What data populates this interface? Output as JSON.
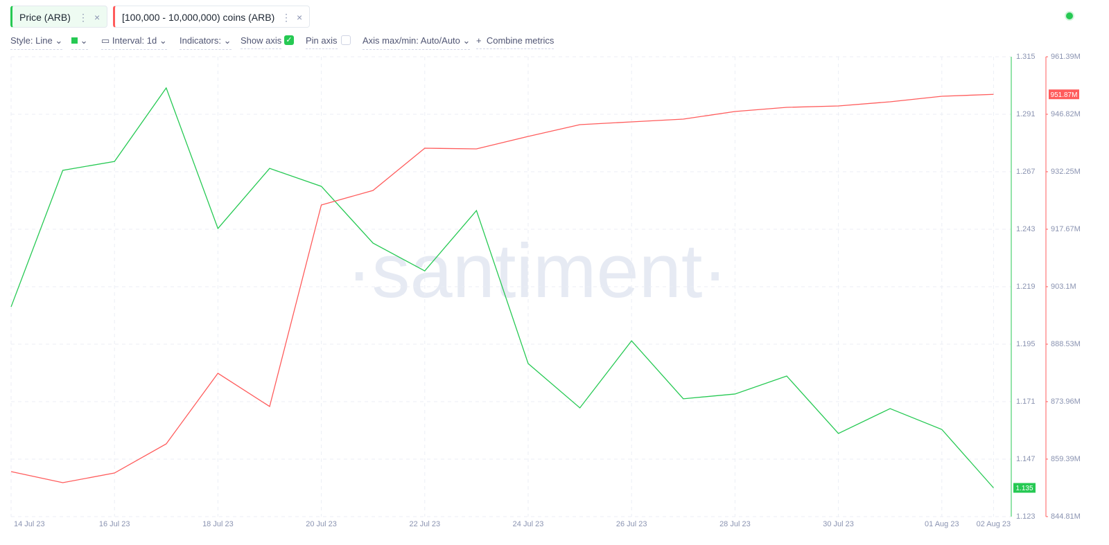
{
  "toolbar": {
    "metrics": [
      "Price (ARB)",
      "[100,000 - 10,000,000) coins (ARB)"
    ],
    "style": "Style: Line",
    "interval": "Interval: 1d",
    "indicators": "Indicators:",
    "show_axis": "Show axis",
    "pin_axis": "Pin axis",
    "axis_range": "Axis max/min: Auto/Auto",
    "combine": "Combine metrics"
  },
  "chart_data": {
    "type": "line",
    "watermark": "·santiment·",
    "grid": true,
    "categories": [
      "14 Jul 23",
      null,
      "16 Jul 23",
      null,
      "18 Jul 23",
      null,
      "20 Jul 23",
      null,
      "22 Jul 23",
      null,
      "24 Jul 23",
      null,
      "26 Jul 23",
      null,
      "28 Jul 23",
      null,
      "30 Jul 23",
      null,
      "01 Aug 23",
      "02 Aug 23"
    ],
    "ylim": [
      1.123,
      1.315
    ],
    "yticks": [
      1.315,
      1.291,
      1.267,
      1.243,
      1.219,
      1.195,
      1.171,
      1.147,
      1.123
    ],
    "y2lim": [
      844810000,
      961390000
    ],
    "y2ticks": [
      {
        "value": 961390000,
        "label": "961.39M"
      },
      {
        "value": 946820000,
        "label": "946.82M"
      },
      {
        "value": 932250000,
        "label": "932.25M"
      },
      {
        "value": 917670000,
        "label": "917.67M"
      },
      {
        "value": 903100000,
        "label": "903.1M"
      },
      {
        "value": 888530000,
        "label": "888.53M"
      },
      {
        "value": 873960000,
        "label": "873.96M"
      },
      {
        "value": 859390000,
        "label": "859.39M"
      },
      {
        "value": 844810000,
        "label": "844.81M"
      }
    ],
    "series": [
      {
        "name": "Price (ARB)",
        "color": "#26c953",
        "values": [
          1.2106,
          1.2676,
          1.2713,
          1.302,
          1.2433,
          1.2684,
          1.2609,
          1.2372,
          1.2256,
          1.2508,
          1.1869,
          1.1684,
          1.1964,
          1.1722,
          1.1742,
          1.1817,
          1.1577,
          1.1681,
          1.1594,
          1.135
        ]
      },
      {
        "name": "[100,000 - 10,000,000) coins (ARB)",
        "color": "#ff5b5b",
        "axis": "y2",
        "values": [
          856220000,
          853410000,
          855870000,
          863250000,
          881150000,
          872730000,
          923820000,
          927500000,
          938210000,
          938040000,
          941200000,
          944180000,
          944890000,
          945590000,
          947520000,
          948570000,
          948920000,
          949980000,
          951380000,
          951870000
        ],
        "value_labels": [
          null,
          null,
          null,
          null,
          null,
          null,
          null,
          null,
          null,
          null,
          null,
          null,
          null,
          null,
          null,
          null,
          null,
          null,
          null,
          "951.87M"
        ]
      }
    ]
  }
}
